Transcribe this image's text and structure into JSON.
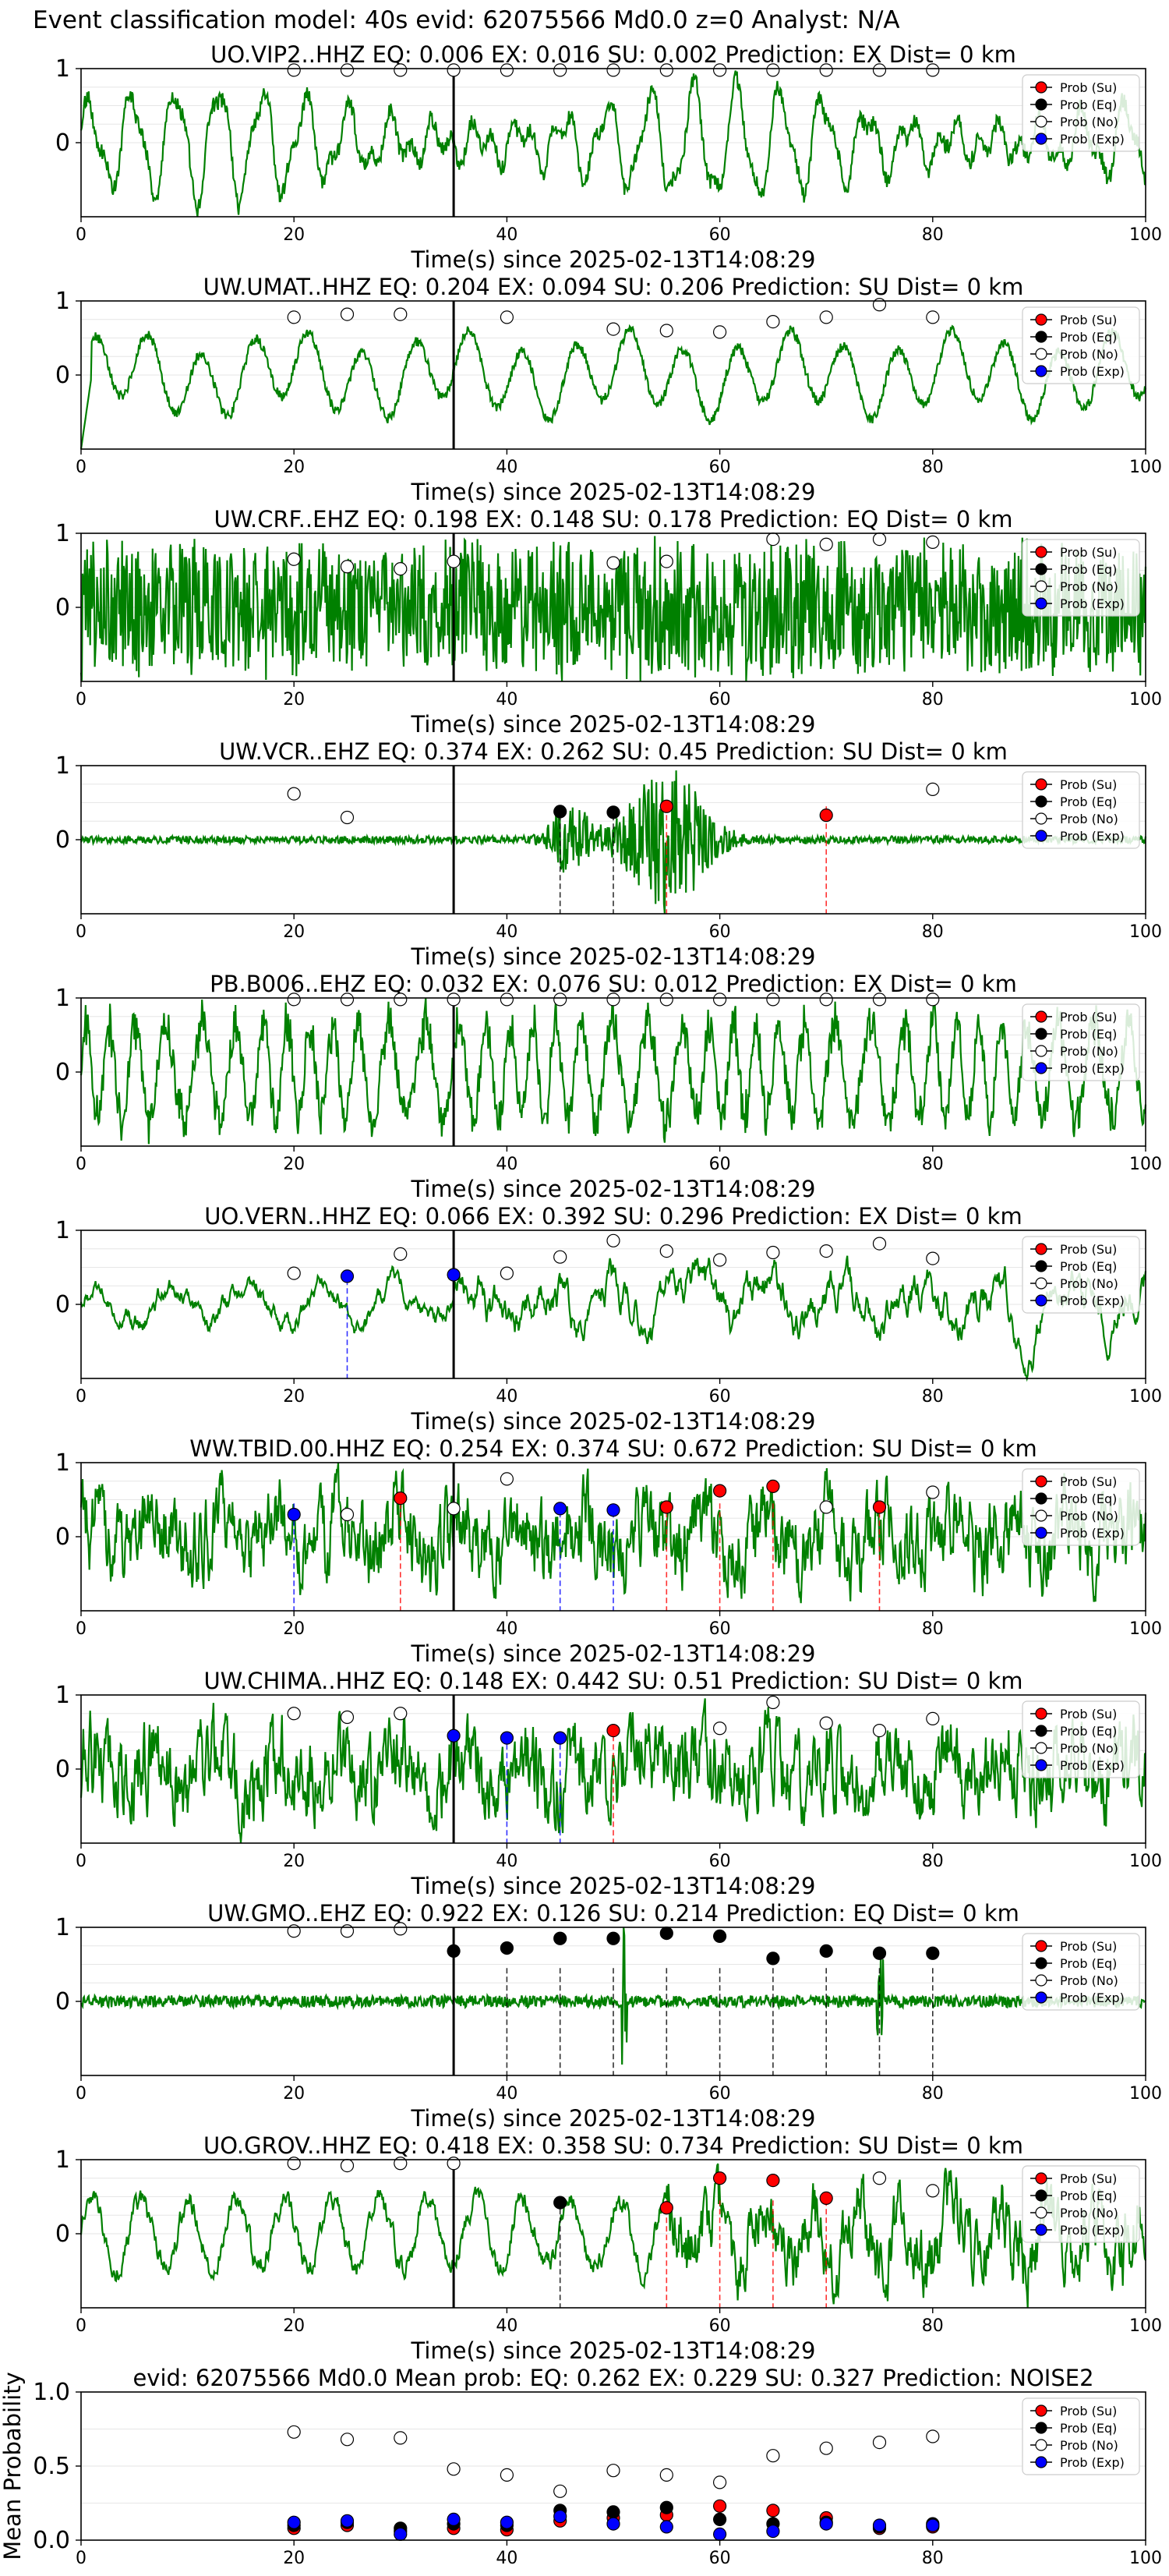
{
  "figure_title": "Event classification model: 40s evid: 62075566 Md0.0 z=0 Analyst: N/A",
  "legend": {
    "entries": [
      {
        "label": "Prob (Su)",
        "color": "#ff0000"
      },
      {
        "label": "Prob (Eq)",
        "color": "#000000"
      },
      {
        "label": "Prob (No)",
        "color": "#ffffff"
      },
      {
        "label": "Prob (Exp)",
        "color": "#0000ff"
      }
    ]
  },
  "colors": {
    "waveform": "#008000",
    "arrival_line": "#000000",
    "su": "#ff0000",
    "eq": "#000000",
    "no": "#ffffff",
    "exp": "#0000ff"
  },
  "chart_data": [
    {
      "type": "line",
      "title": "UO.VIP2..HHZ   EQ: 0.006  EX: 0.016  SU: 0.002   Prediction: EX    Dist= 0 km",
      "xlabel": "Time(s) since 2025-02-13T14:08:29",
      "ylabel": "",
      "xlim": [
        0,
        100
      ],
      "ylim": [
        -1,
        1
      ],
      "xticks": [
        0,
        20,
        40,
        60,
        80,
        100
      ],
      "yticks": [
        0,
        1
      ],
      "arrival": 35,
      "legend_position": "top-right",
      "waveform": {
        "char": "lowfreq",
        "amp": 0.55,
        "seed": 11
      },
      "prob_times": [
        20,
        25,
        30,
        35,
        40,
        45,
        50,
        55,
        60,
        65,
        70,
        75,
        80
      ],
      "series": [
        {
          "name": "Prob (No)",
          "values": [
            0.98,
            0.98,
            0.98,
            0.98,
            0.98,
            0.98,
            0.98,
            0.98,
            0.98,
            0.98,
            0.98,
            0.98,
            0.98
          ]
        }
      ],
      "vlines": []
    },
    {
      "type": "line",
      "title": "UW.UMAT..HHZ   EQ: 0.204  EX: 0.094  SU: 0.206   Prediction: SU    Dist= 0 km",
      "xlabel": "Time(s) since 2025-02-13T14:08:29",
      "ylabel": "",
      "xlim": [
        0,
        100
      ],
      "ylim": [
        -1,
        1
      ],
      "xticks": [
        0,
        20,
        40,
        60,
        80,
        100
      ],
      "yticks": [
        0,
        1
      ],
      "arrival": 35,
      "legend_position": "top-right",
      "waveform": {
        "char": "smooth",
        "amp": 0.2,
        "seed": 23
      },
      "prob_times": [
        20,
        25,
        30,
        40,
        50,
        55,
        60,
        65,
        70,
        75,
        80
      ],
      "series": [
        {
          "name": "Prob (No)",
          "values": [
            0.78,
            0.82,
            0.82,
            0.78,
            0.62,
            0.6,
            0.58,
            0.72,
            0.78,
            0.95,
            0.78
          ]
        }
      ],
      "vlines": []
    },
    {
      "type": "line",
      "title": "UW.CRF..EHZ   EQ: 0.198  EX: 0.148  SU: 0.178   Prediction: EQ    Dist= 0 km",
      "xlabel": "Time(s) since 2025-02-13T14:08:29",
      "ylabel": "",
      "xlim": [
        0,
        100
      ],
      "ylim": [
        -1,
        1
      ],
      "xticks": [
        0,
        20,
        40,
        60,
        80,
        100
      ],
      "yticks": [
        0,
        1
      ],
      "arrival": 35,
      "legend_position": "top-right",
      "waveform": {
        "char": "noise",
        "amp": 0.9,
        "seed": 37
      },
      "prob_times": [
        20,
        25,
        30,
        35,
        50,
        55,
        65,
        70,
        75,
        80
      ],
      "series": [
        {
          "name": "Prob (No)",
          "values": [
            0.65,
            0.55,
            0.52,
            0.62,
            0.6,
            0.62,
            0.92,
            0.85,
            0.92,
            0.88
          ]
        }
      ],
      "vlines": []
    },
    {
      "type": "line",
      "title": "UW.VCR..EHZ   EQ: 0.374  EX: 0.262  SU: 0.45   Prediction: SU    Dist= 0 km",
      "xlabel": "Time(s) since 2025-02-13T14:08:29",
      "ylabel": "",
      "xlim": [
        0,
        100
      ],
      "ylim": [
        -1,
        1
      ],
      "xticks": [
        0,
        20,
        40,
        60,
        80,
        100
      ],
      "yticks": [
        0,
        1
      ],
      "arrival": 35,
      "legend_position": "top-right",
      "waveform": {
        "char": "burst",
        "amp": 0.08,
        "seed": 41
      },
      "prob_times": [
        20,
        25,
        45,
        50,
        55,
        70,
        80
      ],
      "series": [
        {
          "name": "Prob (No)",
          "values": [
            0.62,
            0.3,
            null,
            null,
            null,
            null,
            0.68
          ]
        },
        {
          "name": "Prob (Eq)",
          "values": [
            null,
            null,
            0.38,
            0.37,
            null,
            null,
            null
          ]
        },
        {
          "name": "Prob (Su)",
          "values": [
            null,
            null,
            null,
            null,
            0.45,
            0.33,
            null
          ]
        }
      ],
      "vlines": [
        {
          "x": 45,
          "color": "#000000"
        },
        {
          "x": 50,
          "color": "#000000"
        },
        {
          "x": 55,
          "color": "#ff0000"
        },
        {
          "x": 70,
          "color": "#ff0000"
        }
      ]
    },
    {
      "type": "line",
      "title": "PB.B006..EHZ   EQ: 0.032  EX: 0.076  SU: 0.012   Prediction: EX    Dist= 0 km",
      "xlabel": "Time(s) since 2025-02-13T14:08:29",
      "ylabel": "",
      "xlim": [
        0,
        100
      ],
      "ylim": [
        -1,
        1
      ],
      "xticks": [
        0,
        20,
        40,
        60,
        80,
        100
      ],
      "yticks": [
        0,
        1
      ],
      "arrival": 35,
      "legend_position": "top-right",
      "waveform": {
        "char": "midfreq",
        "amp": 0.6,
        "seed": 53
      },
      "prob_times": [
        20,
        25,
        30,
        35,
        40,
        45,
        50,
        55,
        60,
        65,
        70,
        75,
        80
      ],
      "series": [
        {
          "name": "Prob (No)",
          "values": [
            0.98,
            0.98,
            0.98,
            0.98,
            0.98,
            0.98,
            0.98,
            0.98,
            0.98,
            0.98,
            0.98,
            0.98,
            0.98
          ]
        }
      ],
      "vlines": []
    },
    {
      "type": "line",
      "title": "UO.VERN..HHZ   EQ: 0.066  EX: 0.392  SU: 0.296   Prediction: EX    Dist= 0 km",
      "xlabel": "Time(s) since 2025-02-13T14:08:29",
      "ylabel": "",
      "xlim": [
        0,
        100
      ],
      "ylim": [
        -1,
        1
      ],
      "xticks": [
        0,
        20,
        40,
        60,
        80,
        100
      ],
      "yticks": [
        0,
        1
      ],
      "arrival": 35,
      "legend_position": "top-right",
      "waveform": {
        "char": "lowmid",
        "amp": 0.55,
        "seed": 67
      },
      "prob_times": [
        20,
        25,
        30,
        35,
        40,
        45,
        50,
        55,
        60,
        65,
        70,
        75,
        80
      ],
      "series": [
        {
          "name": "Prob (No)",
          "values": [
            0.42,
            null,
            0.68,
            null,
            0.42,
            0.64,
            0.86,
            0.72,
            0.6,
            0.7,
            0.72,
            0.82,
            0.62
          ]
        },
        {
          "name": "Prob (Exp)",
          "values": [
            null,
            0.38,
            null,
            0.4,
            null,
            null,
            null,
            null,
            null,
            null,
            null,
            null,
            null
          ]
        }
      ],
      "vlines": [
        {
          "x": 25,
          "color": "#0000ff"
        }
      ]
    },
    {
      "type": "line",
      "title": "WW.TBID.00.HHZ   EQ: 0.254  EX: 0.374  SU: 0.672   Prediction: SU    Dist= 0 km",
      "xlabel": "Time(s) since 2025-02-13T14:08:29",
      "ylabel": "",
      "xlim": [
        0,
        100
      ],
      "ylim": [
        -1,
        1
      ],
      "xticks": [
        0,
        20,
        40,
        60,
        80,
        100
      ],
      "yticks": [
        0,
        1
      ],
      "arrival": 35,
      "legend_position": "top-right",
      "waveform": {
        "char": "noisy",
        "amp": 0.35,
        "seed": 79
      },
      "prob_times": [
        20,
        25,
        30,
        35,
        40,
        45,
        50,
        55,
        60,
        65,
        70,
        75,
        80
      ],
      "series": [
        {
          "name": "Prob (No)",
          "values": [
            null,
            0.3,
            null,
            0.38,
            0.78,
            null,
            null,
            null,
            null,
            null,
            0.4,
            null,
            0.6
          ]
        },
        {
          "name": "Prob (Exp)",
          "values": [
            0.3,
            null,
            null,
            null,
            null,
            0.38,
            0.36,
            null,
            null,
            null,
            null,
            null,
            null
          ]
        },
        {
          "name": "Prob (Su)",
          "values": [
            null,
            null,
            0.52,
            null,
            null,
            null,
            null,
            0.4,
            0.62,
            0.68,
            null,
            0.4,
            null
          ]
        }
      ],
      "vlines": [
        {
          "x": 20,
          "color": "#0000ff"
        },
        {
          "x": 30,
          "color": "#ff0000"
        },
        {
          "x": 45,
          "color": "#0000ff"
        },
        {
          "x": 50,
          "color": "#0000ff"
        },
        {
          "x": 55,
          "color": "#ff0000"
        },
        {
          "x": 60,
          "color": "#ff0000"
        },
        {
          "x": 65,
          "color": "#ff0000"
        },
        {
          "x": 75,
          "color": "#ff0000"
        }
      ]
    },
    {
      "type": "line",
      "title": "UW.CHIMA..HHZ   EQ: 0.148  EX: 0.442  SU: 0.51   Prediction: SU    Dist= 0 km",
      "xlabel": "Time(s) since 2025-02-13T14:08:29",
      "ylabel": "",
      "xlim": [
        0,
        100
      ],
      "ylim": [
        -1,
        1
      ],
      "xticks": [
        0,
        20,
        40,
        60,
        80,
        100
      ],
      "yticks": [
        0,
        1
      ],
      "arrival": 35,
      "legend_position": "top-right",
      "waveform": {
        "char": "noisy",
        "amp": 0.5,
        "seed": 83
      },
      "prob_times": [
        20,
        25,
        30,
        35,
        40,
        45,
        50,
        60,
        65,
        70,
        75,
        80
      ],
      "series": [
        {
          "name": "Prob (No)",
          "values": [
            0.75,
            0.7,
            0.75,
            null,
            null,
            null,
            null,
            0.55,
            0.9,
            0.62,
            0.52,
            0.68
          ]
        },
        {
          "name": "Prob (Exp)",
          "values": [
            null,
            null,
            null,
            0.45,
            0.42,
            0.42,
            null,
            null,
            null,
            null,
            null,
            null
          ]
        },
        {
          "name": "Prob (Su)",
          "values": [
            null,
            null,
            null,
            null,
            null,
            null,
            0.52,
            null,
            null,
            null,
            null,
            null
          ]
        }
      ],
      "vlines": [
        {
          "x": 40,
          "color": "#0000ff"
        },
        {
          "x": 45,
          "color": "#0000ff"
        },
        {
          "x": 50,
          "color": "#ff0000"
        }
      ]
    },
    {
      "type": "line",
      "title": "UW.GMO..EHZ   EQ: 0.922  EX: 0.126  SU: 0.214   Prediction: EQ    Dist= 0 km",
      "xlabel": "Time(s) since 2025-02-13T14:08:29",
      "ylabel": "",
      "xlim": [
        0,
        100
      ],
      "ylim": [
        -1,
        1
      ],
      "xticks": [
        0,
        20,
        40,
        60,
        80,
        100
      ],
      "yticks": [
        0,
        1
      ],
      "arrival": 35,
      "legend_position": "top-right",
      "waveform": {
        "char": "quiet",
        "amp": 0.06,
        "seed": 97
      },
      "prob_times": [
        20,
        25,
        30,
        35,
        40,
        45,
        50,
        55,
        60,
        65,
        70,
        75,
        80
      ],
      "series": [
        {
          "name": "Prob (No)",
          "values": [
            0.95,
            0.95,
            0.98,
            null,
            null,
            null,
            null,
            null,
            null,
            null,
            null,
            null,
            null
          ]
        },
        {
          "name": "Prob (Eq)",
          "values": [
            null,
            null,
            null,
            0.68,
            0.72,
            0.85,
            0.85,
            0.92,
            0.88,
            0.58,
            0.68,
            0.65,
            0.65
          ]
        }
      ],
      "vlines": [
        {
          "x": 40,
          "color": "#000000"
        },
        {
          "x": 45,
          "color": "#000000"
        },
        {
          "x": 50,
          "color": "#000000"
        },
        {
          "x": 55,
          "color": "#000000"
        },
        {
          "x": 60,
          "color": "#000000"
        },
        {
          "x": 65,
          "color": "#000000"
        },
        {
          "x": 70,
          "color": "#000000"
        },
        {
          "x": 75,
          "color": "#000000"
        },
        {
          "x": 80,
          "color": "#000000"
        }
      ]
    },
    {
      "type": "line",
      "title": "UO.GROV..HHZ   EQ: 0.418  EX: 0.358  SU: 0.734   Prediction: SU    Dist= 0 km",
      "xlabel": "Time(s) since 2025-02-13T14:08:29",
      "ylabel": "",
      "xlim": [
        0,
        100
      ],
      "ylim": [
        -1,
        1
      ],
      "xticks": [
        0,
        20,
        40,
        60,
        80,
        100
      ],
      "yticks": [
        0,
        1
      ],
      "arrival": 35,
      "legend_position": "top-right",
      "waveform": {
        "char": "grov",
        "amp": 0.45,
        "seed": 101
      },
      "prob_times": [
        20,
        25,
        30,
        35,
        45,
        55,
        60,
        65,
        70,
        75,
        80
      ],
      "series": [
        {
          "name": "Prob (No)",
          "values": [
            0.95,
            0.92,
            0.95,
            0.95,
            null,
            null,
            null,
            null,
            null,
            0.75,
            0.58
          ]
        },
        {
          "name": "Prob (Eq)",
          "values": [
            null,
            null,
            null,
            null,
            0.42,
            null,
            null,
            null,
            null,
            null,
            null
          ]
        },
        {
          "name": "Prob (Su)",
          "values": [
            null,
            null,
            null,
            null,
            null,
            0.35,
            0.75,
            0.72,
            0.48,
            null,
            null
          ]
        }
      ],
      "vlines": [
        {
          "x": 45,
          "color": "#000000"
        },
        {
          "x": 55,
          "color": "#ff0000"
        },
        {
          "x": 60,
          "color": "#ff0000"
        },
        {
          "x": 65,
          "color": "#ff0000"
        },
        {
          "x": 70,
          "color": "#ff0000"
        }
      ]
    },
    {
      "type": "scatter",
      "title": "evid: 62075566  Md0.0   Mean prob:   EQ: 0.262  EX: 0.229  SU: 0.327   Prediction: NOISE2",
      "xlabel": "",
      "ylabel": "Mean Probability",
      "xlim": [
        0,
        100
      ],
      "ylim": [
        0,
        1
      ],
      "xticks": [
        0,
        20,
        40,
        60,
        80,
        100
      ],
      "yticks": [
        0.0,
        0.5,
        1.0
      ],
      "legend_position": "top-right",
      "prob_times": [
        20,
        25,
        30,
        35,
        40,
        45,
        50,
        55,
        60,
        65,
        70,
        75,
        80
      ],
      "series": [
        {
          "name": "Prob (No)",
          "values": [
            0.73,
            0.68,
            0.69,
            0.48,
            0.44,
            0.33,
            0.47,
            0.44,
            0.39,
            0.57,
            0.62,
            0.66,
            0.7
          ]
        },
        {
          "name": "Prob (Su)",
          "values": [
            0.08,
            0.1,
            0.06,
            0.08,
            0.07,
            0.13,
            0.15,
            0.17,
            0.23,
            0.2,
            0.15,
            0.08,
            0.09
          ]
        },
        {
          "name": "Prob (Eq)",
          "values": [
            0.1,
            0.12,
            0.08,
            0.11,
            0.1,
            0.2,
            0.19,
            0.22,
            0.14,
            0.11,
            0.12,
            0.09,
            0.11
          ]
        },
        {
          "name": "Prob (Exp)",
          "values": [
            0.12,
            0.13,
            0.04,
            0.14,
            0.12,
            0.16,
            0.11,
            0.09,
            0.04,
            0.06,
            0.11,
            0.1,
            0.1
          ]
        }
      ]
    }
  ]
}
